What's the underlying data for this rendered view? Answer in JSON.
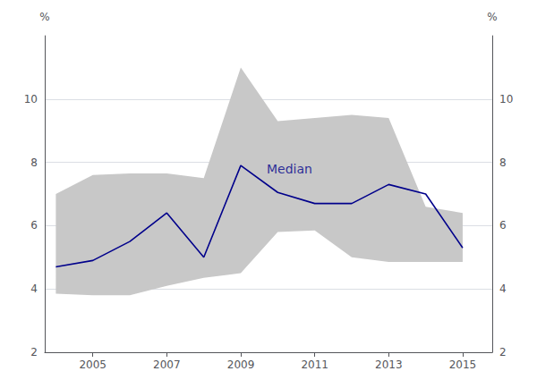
{
  "chart_data": {
    "type": "line",
    "x": [
      2004,
      2005,
      2006,
      2007,
      2008,
      2009,
      2010,
      2011,
      2012,
      2013,
      2014,
      2015
    ],
    "series": [
      {
        "type": "band",
        "lower": [
          3.85,
          3.8,
          3.8,
          4.1,
          4.35,
          4.5,
          5.8,
          5.85,
          5.0,
          4.85,
          4.85,
          4.85
        ],
        "upper": [
          7.0,
          7.6,
          7.65,
          7.65,
          7.5,
          11.0,
          9.3,
          9.4,
          9.5,
          9.4,
          6.6,
          6.4
        ],
        "color": "#C8C8C8"
      },
      {
        "type": "line",
        "values": [
          4.7,
          4.9,
          5.5,
          6.4,
          5.0,
          7.9,
          7.05,
          6.7,
          6.7,
          7.3,
          7.0,
          5.3
        ],
        "color": "#00008B"
      }
    ],
    "annotations": [
      {
        "text": "Median",
        "x": 2009.7,
        "y": 7.6,
        "color": "#00008B"
      }
    ],
    "ylabel": "%",
    "y2label": "%",
    "xlim": [
      2003.7,
      2015.8
    ],
    "xticks": [
      2005,
      2007,
      2009,
      2011,
      2013,
      2015
    ],
    "ylim": [
      2,
      12
    ],
    "yticks": [
      2,
      4,
      6,
      8,
      10
    ],
    "y2lim": [
      2,
      12
    ],
    "y2ticks": [
      2,
      4,
      6,
      8,
      10
    ],
    "grid": true
  }
}
